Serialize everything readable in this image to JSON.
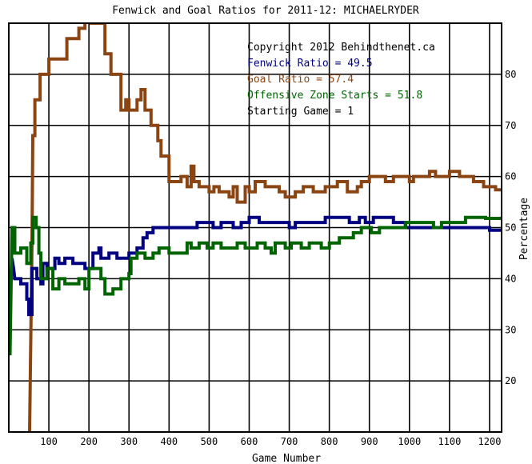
{
  "chart_data": {
    "type": "line",
    "title": "Fenwick and Goal Ratios for 2011-12: MICHAELRYDER",
    "xlabel": "Game Number",
    "ylabel": "Percentage",
    "xlim": [
      0,
      1230
    ],
    "ylim": [
      10,
      90
    ],
    "x_ticks": [
      100,
      200,
      300,
      400,
      500,
      600,
      700,
      800,
      900,
      1000,
      1100,
      1200
    ],
    "y_ticks": [
      20,
      30,
      40,
      50,
      60,
      70,
      80
    ],
    "grid": true,
    "legend_position": "top-right",
    "annotations": [
      {
        "text": "Copyright 2012 Behindthenet.ca",
        "color": "#000000"
      },
      {
        "text": "Fenwick Ratio = 49.5",
        "color": "#000080"
      },
      {
        "text": "Goal Ratio = 57.4",
        "color": "#8B4513"
      },
      {
        "text": "Offensive Zone Starts = 51.8",
        "color": "#006400"
      },
      {
        "text": "Starting Game = 1",
        "color": "#000000"
      }
    ],
    "series": [
      {
        "name": "Goal Ratio",
        "color": "#8B4513",
        "points": [
          [
            52,
            10
          ],
          [
            52,
            10
          ],
          [
            58,
            47
          ],
          [
            60,
            68
          ],
          [
            65,
            68
          ],
          [
            65,
            75
          ],
          [
            78,
            75
          ],
          [
            78,
            80
          ],
          [
            100,
            80
          ],
          [
            100,
            83
          ],
          [
            145,
            83
          ],
          [
            145,
            87
          ],
          [
            175,
            87
          ],
          [
            175,
            89
          ],
          [
            190,
            89
          ],
          [
            190,
            92
          ],
          [
            206,
            92
          ],
          [
            206,
            90
          ],
          [
            215,
            90
          ],
          [
            215,
            92
          ],
          [
            222,
            92
          ],
          [
            222,
            90
          ],
          [
            240,
            90
          ],
          [
            240,
            84
          ],
          [
            255,
            84
          ],
          [
            255,
            80
          ],
          [
            280,
            80
          ],
          [
            280,
            73
          ],
          [
            292,
            73
          ],
          [
            292,
            75
          ],
          [
            300,
            75
          ],
          [
            300,
            73
          ],
          [
            320,
            73
          ],
          [
            320,
            75
          ],
          [
            330,
            75
          ],
          [
            330,
            77
          ],
          [
            340,
            77
          ],
          [
            340,
            73
          ],
          [
            355,
            73
          ],
          [
            355,
            70
          ],
          [
            372,
            70
          ],
          [
            372,
            67
          ],
          [
            380,
            67
          ],
          [
            380,
            64
          ],
          [
            400,
            64
          ],
          [
            400,
            59
          ],
          [
            430,
            59
          ],
          [
            430,
            60
          ],
          [
            445,
            60
          ],
          [
            445,
            58
          ],
          [
            455,
            58
          ],
          [
            455,
            62
          ],
          [
            462,
            62
          ],
          [
            462,
            59
          ],
          [
            475,
            59
          ],
          [
            475,
            58
          ],
          [
            500,
            58
          ],
          [
            500,
            57
          ],
          [
            512,
            57
          ],
          [
            512,
            58
          ],
          [
            525,
            58
          ],
          [
            525,
            57
          ],
          [
            550,
            57
          ],
          [
            550,
            56
          ],
          [
            560,
            56
          ],
          [
            560,
            58
          ],
          [
            570,
            58
          ],
          [
            570,
            55
          ],
          [
            590,
            55
          ],
          [
            590,
            58
          ],
          [
            600,
            58
          ],
          [
            600,
            57
          ],
          [
            615,
            57
          ],
          [
            615,
            59
          ],
          [
            640,
            59
          ],
          [
            640,
            58
          ],
          [
            675,
            58
          ],
          [
            675,
            57
          ],
          [
            690,
            57
          ],
          [
            690,
            56
          ],
          [
            715,
            56
          ],
          [
            715,
            57
          ],
          [
            735,
            57
          ],
          [
            735,
            58
          ],
          [
            760,
            58
          ],
          [
            760,
            57
          ],
          [
            790,
            57
          ],
          [
            790,
            58
          ],
          [
            820,
            58
          ],
          [
            820,
            59
          ],
          [
            845,
            59
          ],
          [
            845,
            57
          ],
          [
            870,
            57
          ],
          [
            870,
            58
          ],
          [
            880,
            58
          ],
          [
            880,
            59
          ],
          [
            900,
            59
          ],
          [
            900,
            60
          ],
          [
            940,
            60
          ],
          [
            940,
            59
          ],
          [
            960,
            59
          ],
          [
            960,
            60
          ],
          [
            1000,
            60
          ],
          [
            1000,
            59
          ],
          [
            1010,
            59
          ],
          [
            1010,
            60
          ],
          [
            1050,
            60
          ],
          [
            1050,
            61
          ],
          [
            1065,
            61
          ],
          [
            1065,
            60
          ],
          [
            1100,
            60
          ],
          [
            1100,
            61
          ],
          [
            1125,
            61
          ],
          [
            1125,
            60
          ],
          [
            1160,
            60
          ],
          [
            1160,
            59
          ],
          [
            1185,
            59
          ],
          [
            1185,
            58
          ],
          [
            1215,
            58
          ],
          [
            1215,
            57.4
          ],
          [
            1230,
            57.4
          ]
        ]
      },
      {
        "name": "Fenwick Ratio",
        "color": "#000080",
        "points": [
          [
            5,
            40
          ],
          [
            8,
            44
          ],
          [
            12,
            42
          ],
          [
            15,
            40
          ],
          [
            30,
            40
          ],
          [
            30,
            39
          ],
          [
            45,
            39
          ],
          [
            45,
            36
          ],
          [
            50,
            36
          ],
          [
            50,
            33
          ],
          [
            58,
            33
          ],
          [
            58,
            42
          ],
          [
            70,
            42
          ],
          [
            70,
            40
          ],
          [
            80,
            40
          ],
          [
            80,
            39
          ],
          [
            85,
            39
          ],
          [
            85,
            43
          ],
          [
            95,
            43
          ],
          [
            95,
            42
          ],
          [
            115,
            42
          ],
          [
            115,
            44
          ],
          [
            125,
            44
          ],
          [
            125,
            43
          ],
          [
            140,
            43
          ],
          [
            140,
            44
          ],
          [
            160,
            44
          ],
          [
            160,
            43
          ],
          [
            190,
            43
          ],
          [
            190,
            42
          ],
          [
            210,
            42
          ],
          [
            210,
            45
          ],
          [
            225,
            45
          ],
          [
            225,
            46
          ],
          [
            230,
            46
          ],
          [
            230,
            44
          ],
          [
            250,
            44
          ],
          [
            250,
            45
          ],
          [
            270,
            45
          ],
          [
            270,
            44
          ],
          [
            300,
            44
          ],
          [
            300,
            45
          ],
          [
            320,
            45
          ],
          [
            320,
            46
          ],
          [
            335,
            46
          ],
          [
            335,
            48
          ],
          [
            345,
            48
          ],
          [
            345,
            49
          ],
          [
            360,
            49
          ],
          [
            360,
            50
          ],
          [
            470,
            50
          ],
          [
            470,
            51
          ],
          [
            510,
            51
          ],
          [
            510,
            50
          ],
          [
            530,
            50
          ],
          [
            530,
            51
          ],
          [
            560,
            51
          ],
          [
            560,
            50
          ],
          [
            580,
            50
          ],
          [
            580,
            51
          ],
          [
            600,
            51
          ],
          [
            600,
            52
          ],
          [
            625,
            52
          ],
          [
            625,
            51
          ],
          [
            700,
            51
          ],
          [
            700,
            50
          ],
          [
            715,
            50
          ],
          [
            715,
            51
          ],
          [
            790,
            51
          ],
          [
            790,
            52
          ],
          [
            850,
            52
          ],
          [
            850,
            51
          ],
          [
            875,
            51
          ],
          [
            875,
            52
          ],
          [
            890,
            52
          ],
          [
            890,
            51
          ],
          [
            910,
            51
          ],
          [
            910,
            52
          ],
          [
            960,
            52
          ],
          [
            960,
            51
          ],
          [
            990,
            51
          ],
          [
            990,
            50
          ],
          [
            1200,
            50
          ],
          [
            1200,
            49.5
          ],
          [
            1230,
            49.5
          ]
        ]
      },
      {
        "name": "Offensive Zone Starts",
        "color": "#006400",
        "points": [
          [
            3,
            25
          ],
          [
            8,
            50
          ],
          [
            15,
            50
          ],
          [
            15,
            45
          ],
          [
            30,
            45
          ],
          [
            30,
            46
          ],
          [
            45,
            46
          ],
          [
            45,
            43
          ],
          [
            55,
            43
          ],
          [
            55,
            47
          ],
          [
            60,
            47
          ],
          [
            60,
            52
          ],
          [
            68,
            52
          ],
          [
            68,
            50
          ],
          [
            75,
            50
          ],
          [
            75,
            45
          ],
          [
            80,
            45
          ],
          [
            80,
            40
          ],
          [
            95,
            40
          ],
          [
            95,
            42
          ],
          [
            110,
            42
          ],
          [
            110,
            38
          ],
          [
            125,
            38
          ],
          [
            125,
            40
          ],
          [
            140,
            40
          ],
          [
            140,
            39
          ],
          [
            175,
            39
          ],
          [
            175,
            40
          ],
          [
            190,
            40
          ],
          [
            190,
            38
          ],
          [
            200,
            38
          ],
          [
            200,
            42
          ],
          [
            230,
            42
          ],
          [
            230,
            40
          ],
          [
            240,
            40
          ],
          [
            240,
            37
          ],
          [
            260,
            37
          ],
          [
            260,
            38
          ],
          [
            280,
            38
          ],
          [
            280,
            40
          ],
          [
            300,
            40
          ],
          [
            300,
            41
          ],
          [
            305,
            41
          ],
          [
            305,
            44
          ],
          [
            320,
            44
          ],
          [
            320,
            45
          ],
          [
            340,
            45
          ],
          [
            340,
            44
          ],
          [
            360,
            44
          ],
          [
            360,
            45
          ],
          [
            375,
            45
          ],
          [
            375,
            46
          ],
          [
            400,
            46
          ],
          [
            400,
            45
          ],
          [
            445,
            45
          ],
          [
            445,
            47
          ],
          [
            455,
            47
          ],
          [
            455,
            46
          ],
          [
            475,
            46
          ],
          [
            475,
            47
          ],
          [
            495,
            47
          ],
          [
            495,
            46
          ],
          [
            510,
            46
          ],
          [
            510,
            47
          ],
          [
            530,
            47
          ],
          [
            530,
            46
          ],
          [
            570,
            46
          ],
          [
            570,
            47
          ],
          [
            590,
            47
          ],
          [
            590,
            46
          ],
          [
            620,
            46
          ],
          [
            620,
            47
          ],
          [
            640,
            47
          ],
          [
            640,
            46
          ],
          [
            655,
            46
          ],
          [
            655,
            45
          ],
          [
            665,
            45
          ],
          [
            665,
            47
          ],
          [
            690,
            47
          ],
          [
            690,
            46
          ],
          [
            705,
            46
          ],
          [
            705,
            47
          ],
          [
            730,
            47
          ],
          [
            730,
            46
          ],
          [
            750,
            46
          ],
          [
            750,
            47
          ],
          [
            780,
            47
          ],
          [
            780,
            46
          ],
          [
            800,
            46
          ],
          [
            800,
            47
          ],
          [
            825,
            47
          ],
          [
            825,
            48
          ],
          [
            860,
            48
          ],
          [
            860,
            49
          ],
          [
            880,
            49
          ],
          [
            880,
            50
          ],
          [
            905,
            50
          ],
          [
            905,
            49
          ],
          [
            925,
            49
          ],
          [
            925,
            50
          ],
          [
            990,
            50
          ],
          [
            990,
            51
          ],
          [
            1060,
            51
          ],
          [
            1060,
            50
          ],
          [
            1080,
            50
          ],
          [
            1080,
            51
          ],
          [
            1140,
            51
          ],
          [
            1140,
            52
          ],
          [
            1190,
            52
          ],
          [
            1190,
            51.8
          ],
          [
            1230,
            51.8
          ]
        ]
      }
    ]
  }
}
